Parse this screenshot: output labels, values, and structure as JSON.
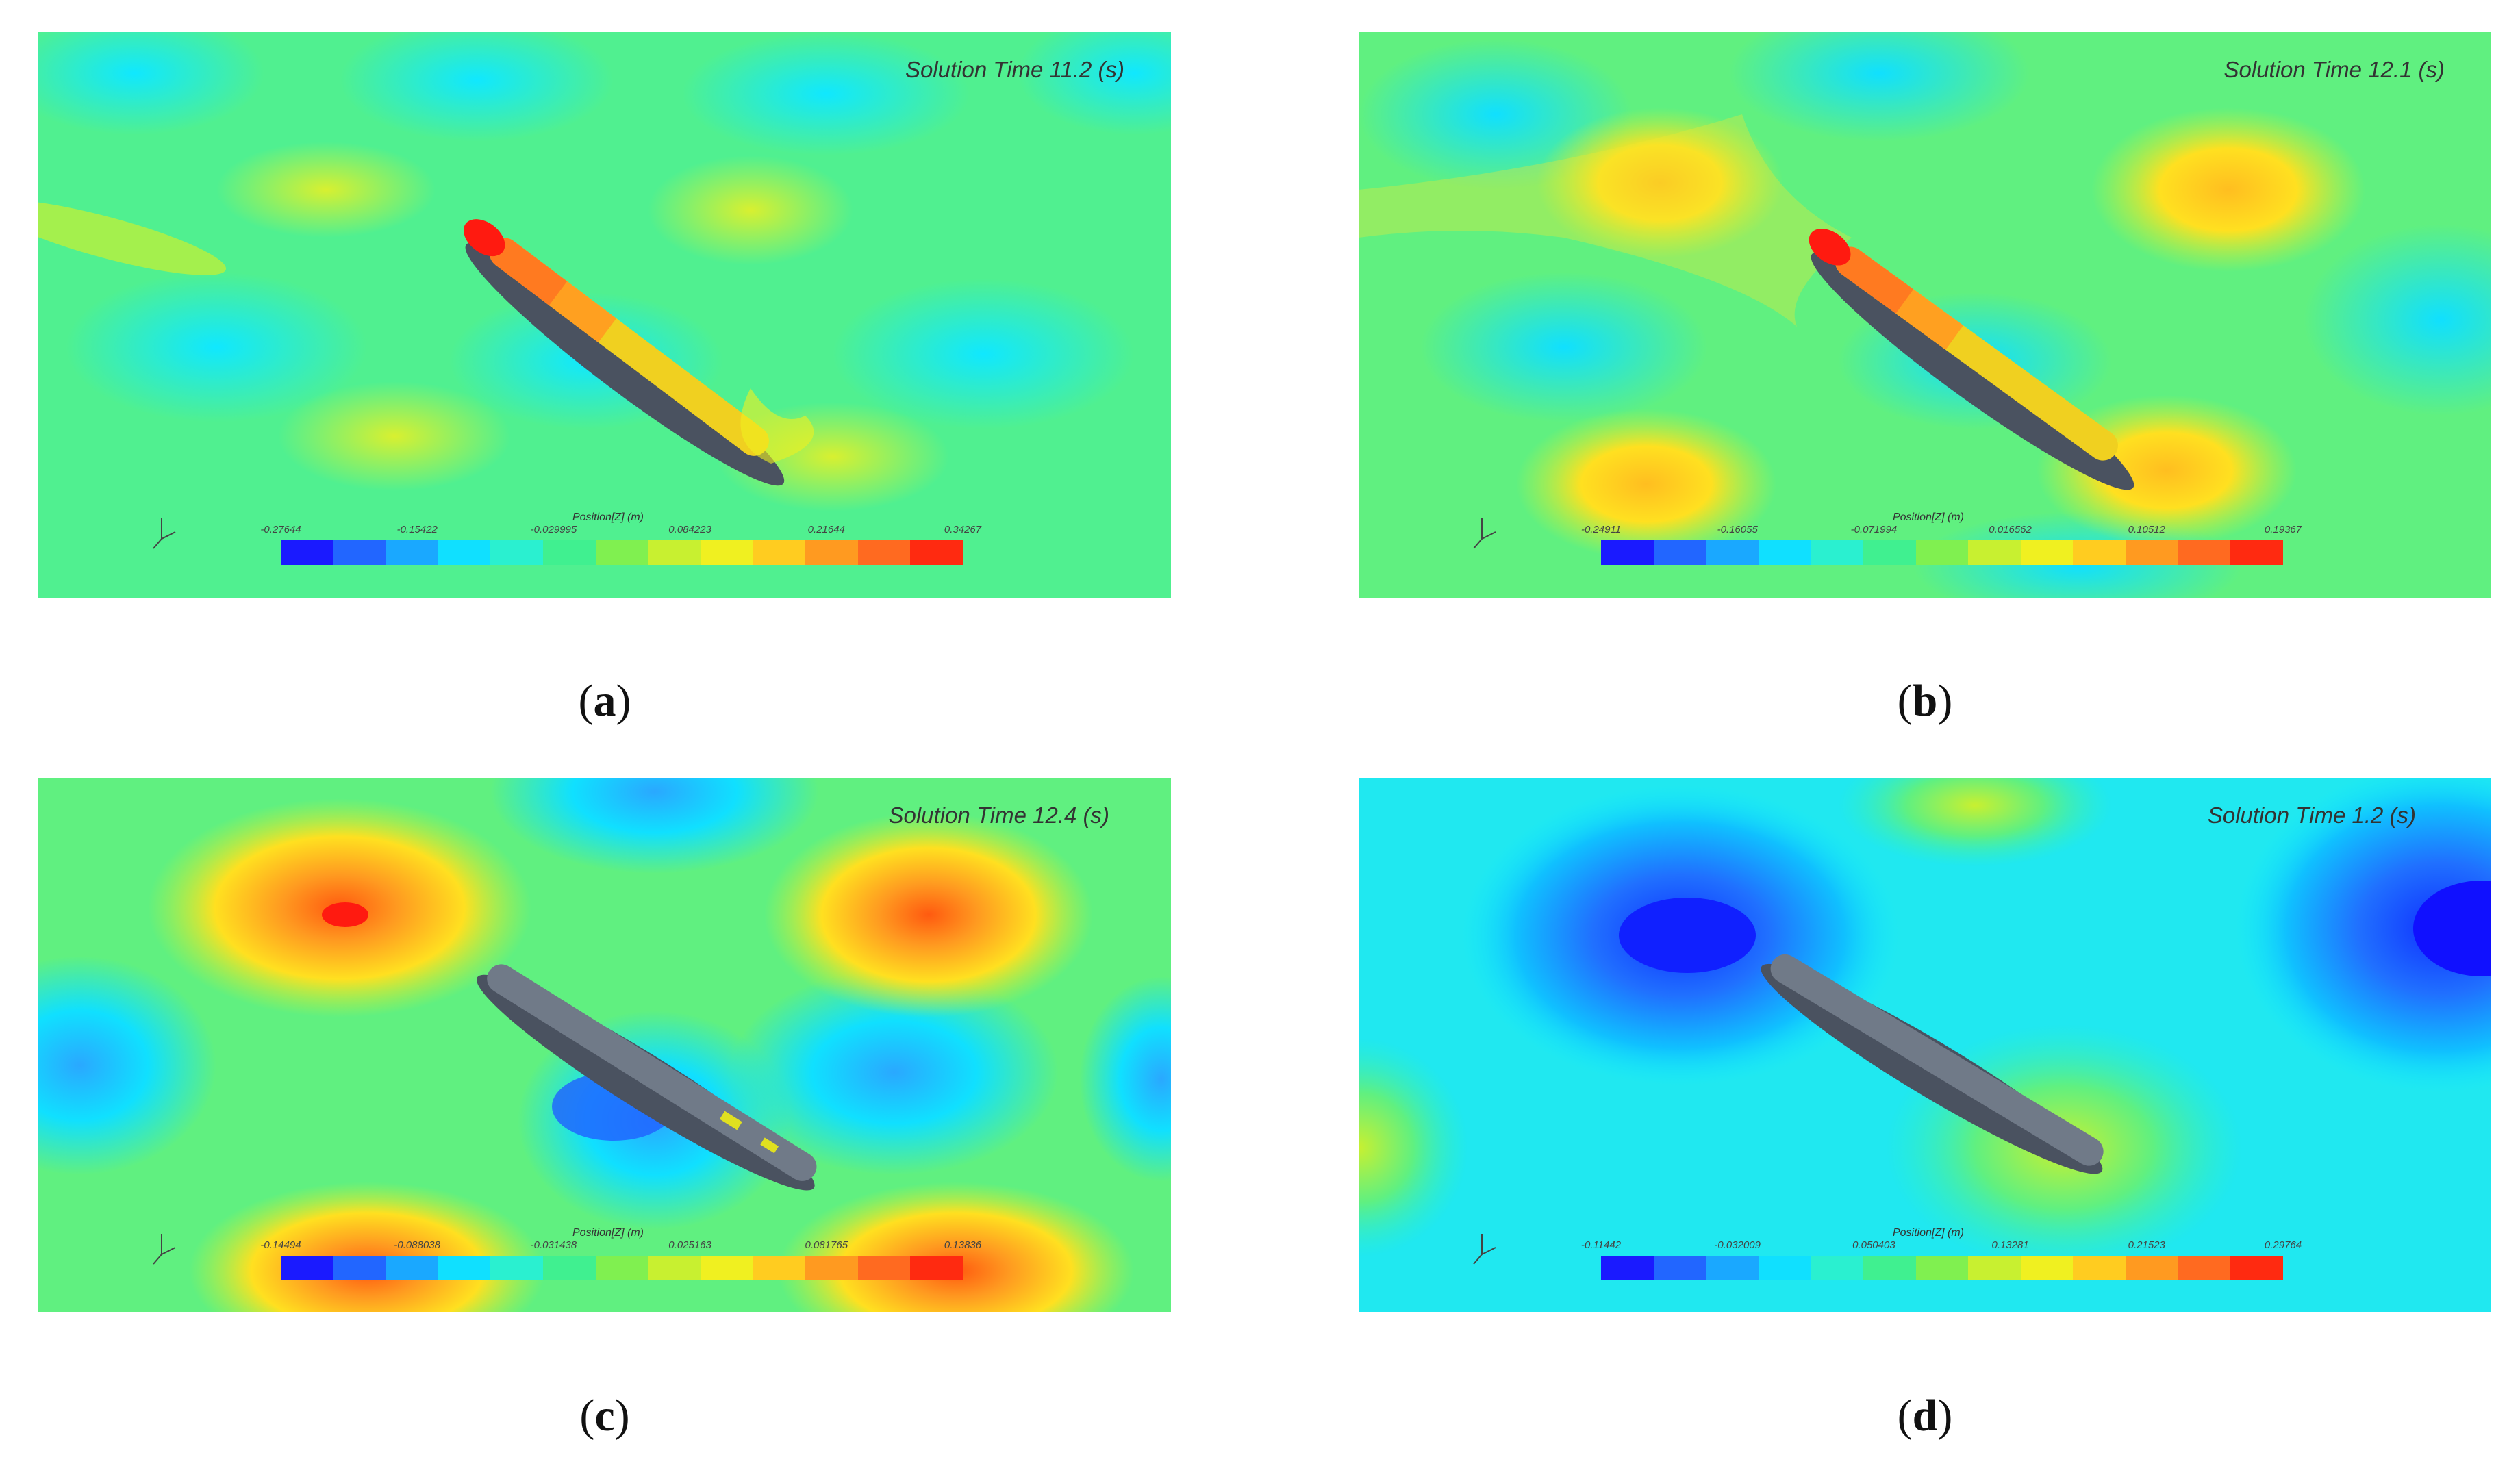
{
  "panels": [
    {
      "id": "a",
      "solution_time": "Solution Time 11.2 (s)",
      "colorbar_title": "Position[Z] (m)",
      "colorbar_ticks": [
        "-0.27644",
        "-0.15422",
        "-0.029995",
        "0.084223",
        "0.21644",
        "0.34267"
      ],
      "caption_letter": "a"
    },
    {
      "id": "b",
      "solution_time": "Solution Time 12.1 (s)",
      "colorbar_title": "Position[Z] (m)",
      "colorbar_ticks": [
        "-0.24911",
        "-0.16055",
        "-0.071994",
        "0.016562",
        "0.10512",
        "0.19367"
      ],
      "caption_letter": "b"
    },
    {
      "id": "c",
      "solution_time": "Solution Time 12.4 (s)",
      "colorbar_title": "Position[Z] (m)",
      "colorbar_ticks": [
        "-0.14494",
        "-0.088038",
        "-0.031438",
        "0.025163",
        "0.081765",
        "0.13836"
      ],
      "caption_letter": "c"
    },
    {
      "id": "d",
      "solution_time": "Solution Time 1.2 (s)",
      "colorbar_title": "Position[Z] (m)",
      "colorbar_ticks": [
        "-0.11442",
        "-0.032009",
        "0.050403",
        "0.13281",
        "0.21523",
        "0.29764"
      ],
      "caption_letter": "d"
    }
  ],
  "colors": {
    "colormap": [
      "#1a1aff",
      "#2266ff",
      "#1aa8ff",
      "#10e0ff",
      "#2af0d0",
      "#40f090",
      "#80f050",
      "#c8f030",
      "#f0f020",
      "#ffcc20",
      "#ff9a20",
      "#ff6a20",
      "#ff2a10"
    ],
    "hull": "#707a88",
    "hull_dark": "#4a5260"
  }
}
